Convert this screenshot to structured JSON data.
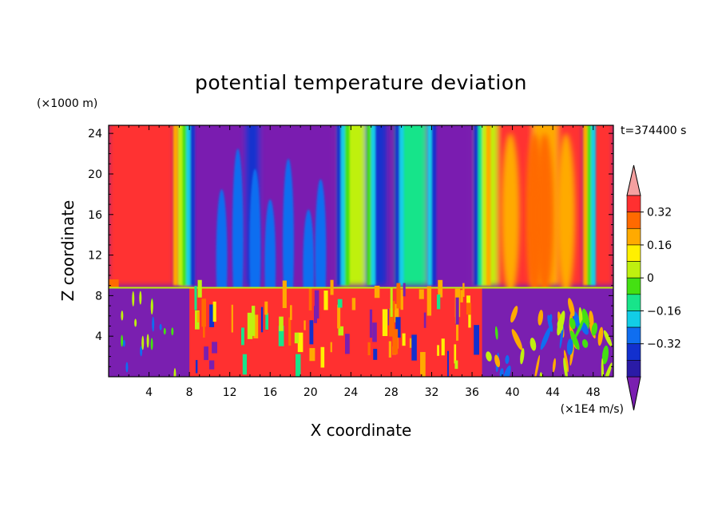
{
  "chart_data": {
    "type": "heatmap",
    "title": "potential temperature deviation",
    "xlabel": "X coordinate",
    "ylabel": "Z coordinate",
    "x_unit_label": "(×1E4 m/s)",
    "y_unit_label": "(×1000 m)",
    "time_label": "t=374400 s",
    "xlim": [
      0,
      50
    ],
    "ylim": [
      0,
      24.8
    ],
    "x_ticks": [
      "4",
      "8",
      "12",
      "16",
      "20",
      "24",
      "28",
      "32",
      "36",
      "40",
      "44",
      "48"
    ],
    "x_tick_values": [
      4,
      8,
      12,
      16,
      20,
      24,
      28,
      32,
      36,
      40,
      44,
      48
    ],
    "y_ticks": [
      "4",
      "8",
      "12",
      "16",
      "20",
      "24"
    ],
    "y_tick_values": [
      4,
      8,
      12,
      16,
      20,
      24
    ],
    "colorbar": {
      "labels": [
        "0.32",
        "0.16",
        "0",
        "−0.16",
        "−0.32"
      ],
      "label_values": [
        0.32,
        0.16,
        0,
        -0.16,
        -0.32
      ],
      "level_min": -0.4,
      "level_max": 0.4,
      "level_step": 0.08,
      "colors_low_to_high": [
        "#7a1fb0",
        "#2a1ba6",
        "#1230ce",
        "#0f6ef0",
        "#12cde6",
        "#18e48a",
        "#44e012",
        "#bff00f",
        "#fff000",
        "#ffaa00",
        "#ff6a00",
        "#ff3030",
        "#f5a0a0"
      ]
    },
    "upper_layer_columns": [
      {
        "x": [
          0,
          6.5
        ],
        "value": 0.45
      },
      {
        "x": [
          7,
          8
        ],
        "value": 0.2
      },
      {
        "x": [
          8,
          14
        ],
        "value": -0.42
      },
      {
        "x": [
          13.5,
          15
        ],
        "value": -0.3
      },
      {
        "x": [
          15,
          22.5
        ],
        "value": -0.42
      },
      {
        "x": [
          23,
          25.5
        ],
        "value": 0.15
      },
      {
        "x": [
          25.5,
          27.5
        ],
        "value": -0.25
      },
      {
        "x": [
          28.5,
          31.5
        ],
        "value": -0.02
      },
      {
        "x": [
          31.5,
          36
        ],
        "value": -0.42
      },
      {
        "x": [
          36.5,
          38.5
        ],
        "value": 0.1
      },
      {
        "x": [
          38.5,
          47
        ],
        "value": 0.45
      },
      {
        "x": [
          42,
          44.5
        ],
        "value": 0.3
      },
      {
        "x": [
          48,
          50
        ],
        "value": 0.45
      }
    ],
    "lower_layer_columns": [
      {
        "x": [
          0,
          7.5
        ],
        "value": -0.42
      },
      {
        "x": [
          8,
          37
        ],
        "value": 0.45
      },
      {
        "x": [
          37,
          50
        ],
        "value": -0.42
      }
    ],
    "interface_height": 8.7
  }
}
